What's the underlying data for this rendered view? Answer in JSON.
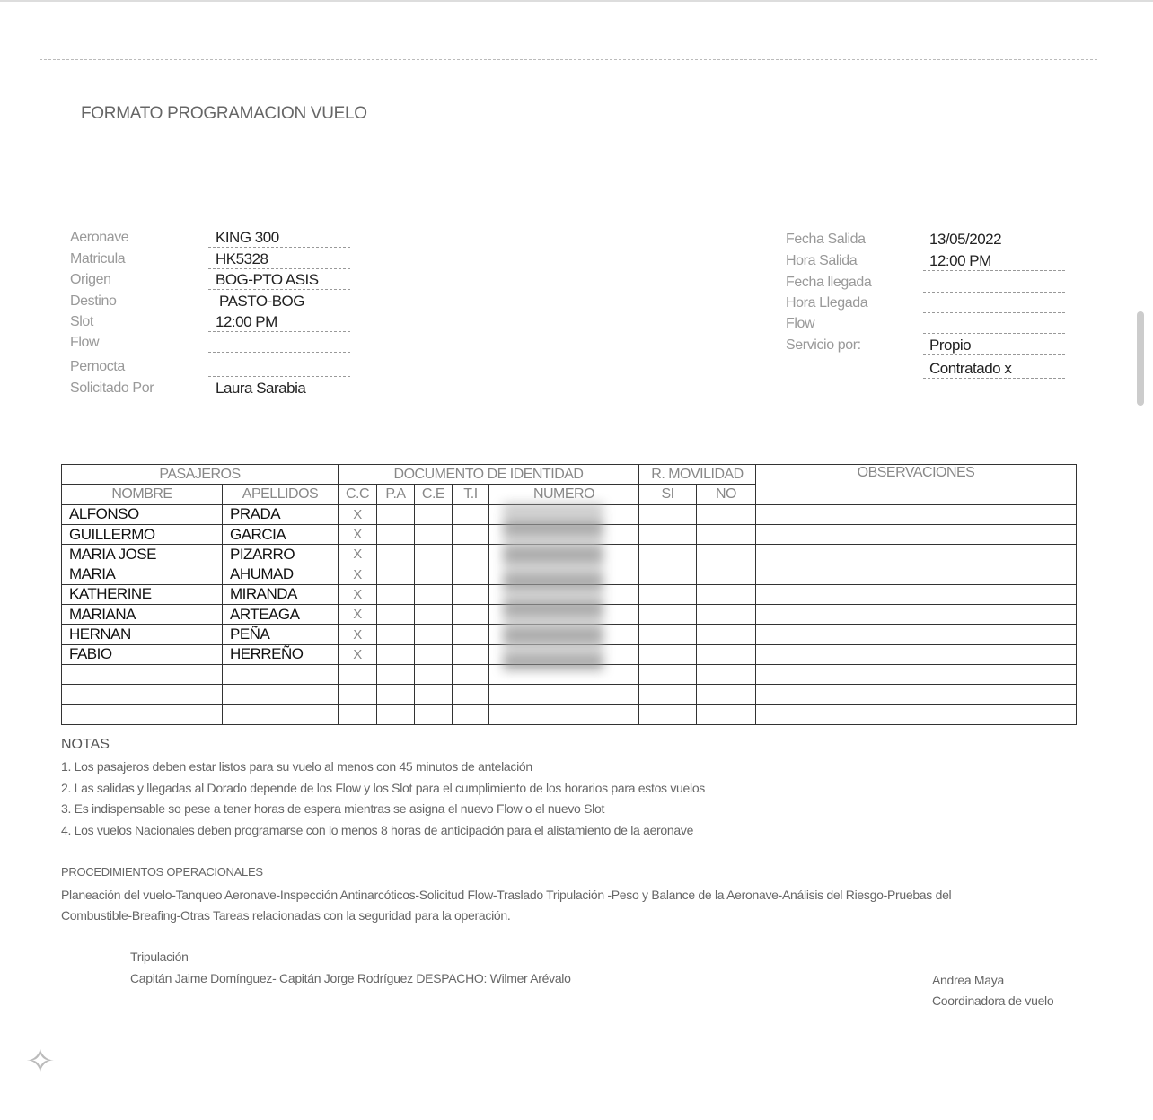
{
  "title": "FORMATO PROGRAMACION VUELO",
  "left_fields": [
    {
      "label": "Aeronave",
      "value": "KING 300"
    },
    {
      "label": "Matricula",
      "value": "HK5328"
    },
    {
      "label": "Origen",
      "value": "BOG-PTO ASIS"
    },
    {
      "label": "Destino",
      "value": "PASTO-BOG"
    },
    {
      "label": "Slot",
      "value": "12:00 PM"
    },
    {
      "label": "Flow",
      "value": ""
    },
    {
      "label": "Pernocta",
      "value": ""
    },
    {
      "label": "Solicitado Por",
      "value": "Laura Sarabia"
    }
  ],
  "right_fields": [
    {
      "label": "Fecha Salida",
      "value": "13/05/2022"
    },
    {
      "label": "Hora Salida",
      "value": "12:00 PM"
    },
    {
      "label": "Fecha llegada",
      "value": ""
    },
    {
      "label": "Hora Llegada",
      "value": ""
    },
    {
      "label": "Flow",
      "value": ""
    },
    {
      "label": "Servicio por:",
      "value": "Propio"
    },
    {
      "label": "",
      "value": "Contratado  x"
    }
  ],
  "table": {
    "group_headers": [
      "PASAJEROS",
      "DOCUMENTO DE IDENTIDAD",
      "R. MOVILIDAD",
      "OBSERVACIONES"
    ],
    "sub_headers": [
      "NOMBRE",
      "APELLIDOS",
      "C.C",
      "P.A",
      "C.E",
      "T.I",
      "NUMERO",
      "SI",
      "NO"
    ],
    "rows": [
      {
        "nombre": "ALFONSO",
        "apellidos": "PRADA",
        "cc": "X"
      },
      {
        "nombre": "GUILLERMO",
        "apellidos": "GARCIA",
        "cc": "X"
      },
      {
        "nombre": "MARIA JOSE",
        "apellidos": "PIZARRO",
        "cc": "X"
      },
      {
        "nombre": "MARIA",
        "apellidos": "AHUMAD",
        "cc": "X"
      },
      {
        "nombre": "KATHERINE",
        "apellidos": "MIRANDA",
        "cc": "X"
      },
      {
        "nombre": "MARIANA",
        "apellidos": "ARTEAGA",
        "cc": "X"
      },
      {
        "nombre": "HERNAN",
        "apellidos": "PEÑA",
        "cc": "X"
      },
      {
        "nombre": "FABIO",
        "apellidos": "HERREÑO",
        "cc": "X"
      },
      {
        "nombre": "",
        "apellidos": "",
        "cc": ""
      },
      {
        "nombre": "",
        "apellidos": "",
        "cc": ""
      },
      {
        "nombre": "",
        "apellidos": "",
        "cc": ""
      }
    ]
  },
  "notas": {
    "heading": "NOTAS",
    "items": [
      "1. Los pasajeros deben estar listos para su vuelo al menos con 45 minutos de antelación",
      "2. Las salidas y llegadas al Dorado depende de los Flow y los Slot  para el cumplimiento de los horarios para estos vuelos",
      "3. Es indispensable so pese a tener horas de espera mientras se asigna el nuevo Flow o el nuevo Slot",
      "4. Los vuelos Nacionales deben programarse con lo menos 8 horas de anticipación para el alistamiento de la aeronave"
    ]
  },
  "procedimientos": {
    "heading": "PROCEDIMIENTOS OPERACIONALES",
    "line1": "Planeación del vuelo-Tanqueo Aeronave-Inspección Antinarcóticos-Solicitud Flow-Traslado Tripulación -Peso y Balance de la Aeronave-Análisis del Riesgo-Pruebas del",
    "line2": "Combustible-Breafing-Otras Tareas relacionadas con la seguridad para la operación."
  },
  "tripulacion": {
    "heading": "Tripulación",
    "crew": "Capitán Jaime Domínguez- Capitán Jorge Rodríguez    DESPACHO: Wilmer Arévalo"
  },
  "signature": {
    "name": "Andrea Maya",
    "role": "Coordinadora de vuelo"
  }
}
